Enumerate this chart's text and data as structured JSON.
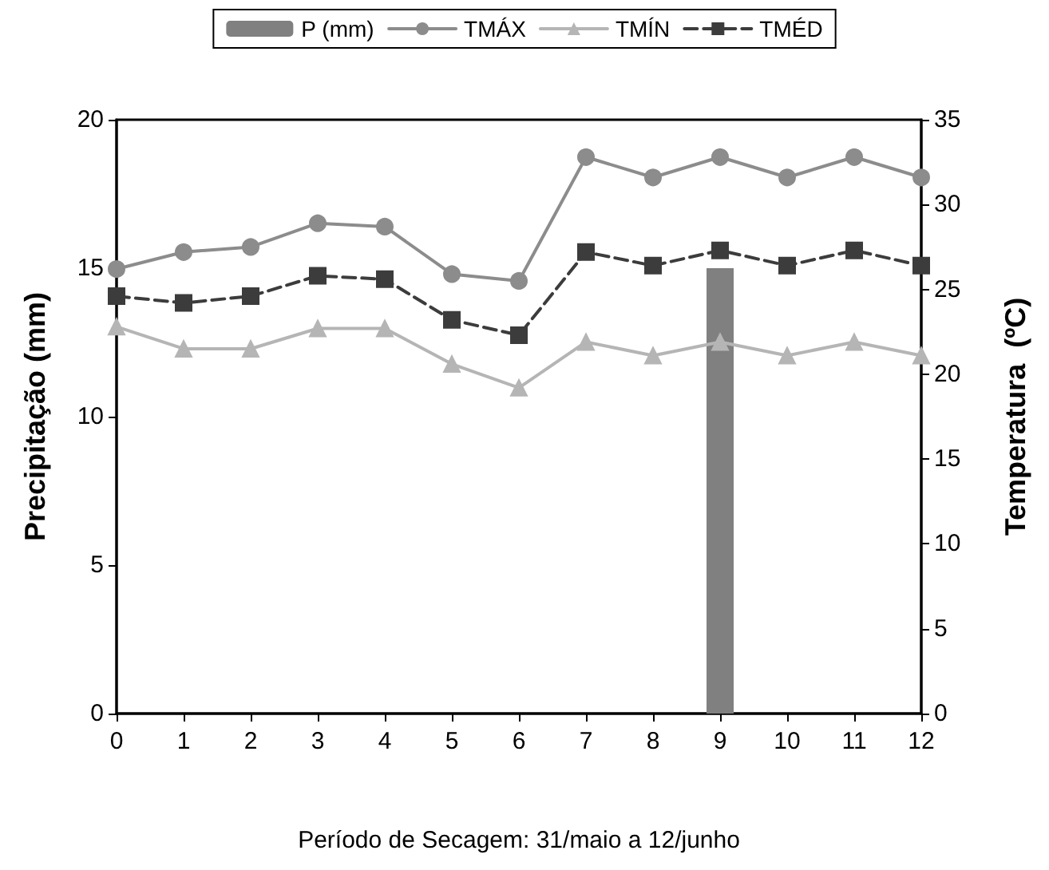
{
  "chart_data": {
    "type": "line",
    "xlabel": "Período de Secagem: 31/maio a 12/junho",
    "ylabel": "Precipitação (mm)",
    "y2label": "Temperatura  (ºC)",
    "x": [
      0,
      1,
      2,
      3,
      4,
      5,
      6,
      7,
      8,
      9,
      10,
      11,
      12
    ],
    "xlim": [
      0,
      12
    ],
    "xticks": [
      0,
      1,
      2,
      3,
      4,
      5,
      6,
      7,
      8,
      9,
      10,
      11,
      12
    ],
    "series": [
      {
        "name": "P (mm)",
        "type": "bar",
        "color": "#808080",
        "values": [
          null,
          null,
          null,
          null,
          null,
          null,
          null,
          null,
          null,
          15,
          null,
          null,
          null
        ]
      },
      {
        "name": "TMÁX",
        "axis": "y2",
        "color": "#8c8c8c",
        "marker": "circle",
        "line_style": "solid",
        "values": [
          26.2,
          27.2,
          27.5,
          28.9,
          28.7,
          25.9,
          25.5,
          32.8,
          31.6,
          32.8,
          31.6,
          32.8,
          31.6
        ]
      },
      {
        "name": "TMÍN",
        "axis": "y2",
        "color": "#b5b5b5",
        "marker": "triangle",
        "line_style": "solid",
        "values": [
          22.8,
          21.5,
          21.5,
          22.7,
          22.7,
          20.6,
          19.2,
          21.9,
          21.1,
          21.9,
          21.1,
          21.9,
          21.1
        ]
      },
      {
        "name": "TMÉD",
        "axis": "y2",
        "color": "#3c3c3c",
        "marker": "square",
        "line_style": "dashed",
        "values": [
          24.6,
          24.2,
          24.6,
          25.8,
          25.6,
          23.2,
          22.3,
          27.2,
          26.4,
          27.3,
          26.4,
          27.3,
          26.4
        ]
      }
    ],
    "ylim": [
      0,
      20
    ],
    "yticks": [
      0,
      5,
      10,
      15,
      20
    ],
    "y2lim": [
      0,
      35
    ],
    "y2ticks": [
      0,
      5,
      10,
      15,
      20,
      25,
      30,
      35
    ],
    "grid": false,
    "legend": "top"
  }
}
